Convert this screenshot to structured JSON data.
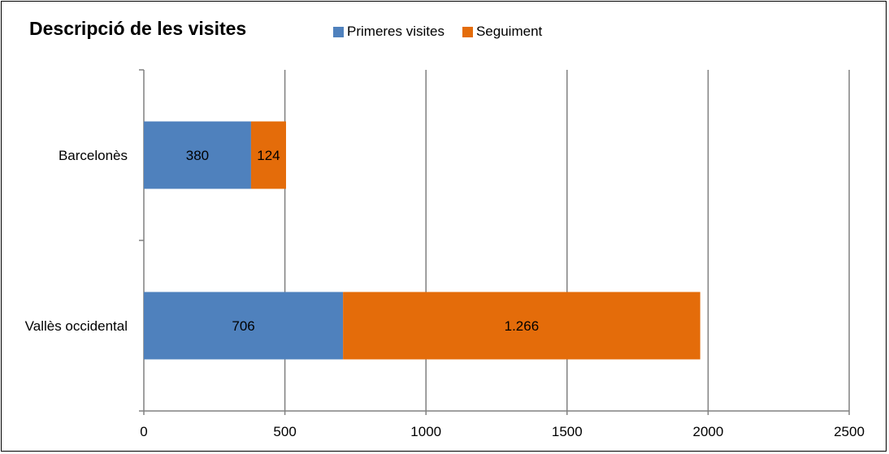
{
  "chart_data": {
    "type": "bar",
    "orientation": "horizontal",
    "stacked": true,
    "title": "Descripció de les visites",
    "categories": [
      "Barcelonès",
      "Vallès occidental"
    ],
    "series": [
      {
        "name": "Primeres visites",
        "color": "#4f81bd",
        "values": [
          380,
          706
        ],
        "labels": [
          "380",
          "706"
        ]
      },
      {
        "name": "Seguiment",
        "color": "#e46c0a",
        "values": [
          124,
          1266
        ],
        "labels": [
          "124",
          "1.266"
        ]
      }
    ],
    "xlim": [
      0,
      2500
    ],
    "xticks": [
      0,
      500,
      1000,
      1500,
      2000,
      2500
    ],
    "grid": "vertical",
    "legend_position": "top"
  }
}
